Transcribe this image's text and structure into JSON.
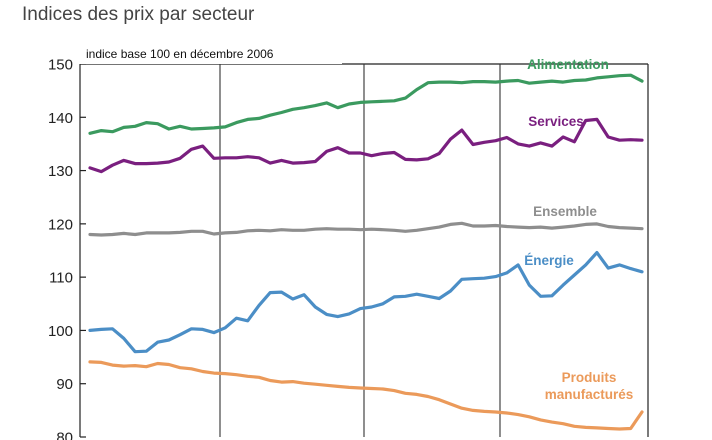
{
  "chart_data": {
    "type": "line",
    "title": "Indices des prix par secteur",
    "subtitle": "indice base 100 en décembre 2006",
    "xlabel": "",
    "ylabel": "",
    "ylim": [
      80,
      150
    ],
    "yticks": [
      80,
      90,
      100,
      110,
      120,
      130,
      140,
      150
    ],
    "grid": "vertical",
    "x": [
      0,
      1,
      2,
      3,
      4,
      5,
      6,
      7,
      8,
      9,
      10,
      11,
      12,
      13,
      14,
      15,
      16,
      17,
      18,
      19,
      20,
      21,
      22,
      23,
      24,
      25,
      26,
      27,
      28,
      29,
      30,
      31,
      32,
      33,
      34,
      35,
      36,
      37,
      38,
      39,
      40,
      41,
      42,
      43,
      44,
      45,
      46,
      47,
      48,
      49
    ],
    "series": [
      {
        "name": "Alimentation",
        "color": "#3b9a5f",
        "values": [
          137.0,
          137.5,
          137.3,
          138.1,
          138.3,
          139.0,
          138.8,
          137.8,
          138.3,
          137.8,
          137.9,
          138.0,
          138.2,
          139.0,
          139.6,
          139.8,
          140.4,
          140.9,
          141.5,
          141.8,
          142.2,
          142.7,
          141.8,
          142.5,
          142.8,
          142.9,
          143.0,
          143.1,
          143.6,
          145.2,
          146.5,
          146.6,
          146.6,
          146.5,
          146.7,
          146.7,
          146.6,
          146.8,
          146.9,
          146.4,
          146.6,
          146.8,
          146.6,
          146.9,
          147.0,
          147.4,
          147.6,
          147.8,
          147.9,
          146.8
        ],
        "label_lines": [
          "Alimentation"
        ]
      },
      {
        "name": "Services",
        "color": "#7a1f7f",
        "values": [
          130.5,
          129.8,
          131.0,
          131.9,
          131.3,
          131.3,
          131.4,
          131.6,
          132.3,
          134.0,
          134.6,
          132.3,
          132.4,
          132.4,
          132.6,
          132.4,
          131.4,
          131.9,
          131.4,
          131.5,
          131.7,
          133.6,
          134.3,
          133.3,
          133.3,
          132.8,
          133.2,
          133.4,
          132.1,
          132.0,
          132.2,
          133.2,
          135.9,
          137.6,
          134.9,
          135.3,
          135.6,
          136.2,
          135.0,
          134.6,
          135.2,
          134.6,
          136.3,
          135.4,
          139.4,
          139.6,
          136.3,
          135.7,
          135.8,
          135.7
        ],
        "label_lines": [
          "Services"
        ]
      },
      {
        "name": "Ensemble",
        "color": "#8e8e8e",
        "values": [
          118.0,
          117.9,
          118.0,
          118.2,
          118.0,
          118.3,
          118.3,
          118.3,
          118.4,
          118.6,
          118.6,
          118.1,
          118.3,
          118.4,
          118.7,
          118.8,
          118.7,
          118.9,
          118.8,
          118.8,
          119.0,
          119.1,
          119.0,
          119.0,
          118.9,
          119.0,
          118.9,
          118.8,
          118.6,
          118.8,
          119.1,
          119.4,
          119.9,
          120.1,
          119.6,
          119.6,
          119.7,
          119.5,
          119.4,
          119.3,
          119.4,
          119.2,
          119.4,
          119.6,
          119.9,
          120.0,
          119.5,
          119.3,
          119.2,
          119.1
        ],
        "label_lines": [
          "Ensemble"
        ]
      },
      {
        "name": "Énergie",
        "color": "#4b8ec6",
        "values": [
          100.0,
          100.2,
          100.3,
          98.5,
          96.0,
          96.1,
          97.8,
          98.2,
          99.2,
          100.3,
          100.2,
          99.6,
          100.5,
          102.3,
          101.8,
          104.7,
          107.1,
          107.2,
          105.9,
          106.7,
          104.4,
          103.0,
          102.6,
          103.1,
          104.1,
          104.4,
          105.0,
          106.3,
          106.4,
          106.8,
          106.4,
          106.0,
          107.4,
          109.6,
          109.7,
          109.8,
          110.1,
          110.8,
          112.3,
          108.5,
          106.4,
          106.5,
          108.5,
          110.4,
          112.3,
          114.6,
          111.7,
          112.3,
          111.6,
          111.0
        ],
        "label_lines": [
          "Énergie"
        ]
      },
      {
        "name": "Produits manufacturés",
        "color": "#eb9a5a",
        "values": [
          94.1,
          94.0,
          93.5,
          93.3,
          93.4,
          93.2,
          93.8,
          93.6,
          93.0,
          92.8,
          92.3,
          92.0,
          91.9,
          91.7,
          91.4,
          91.2,
          90.6,
          90.3,
          90.4,
          90.1,
          89.9,
          89.7,
          89.5,
          89.3,
          89.2,
          89.1,
          89.0,
          88.7,
          88.2,
          88.0,
          87.6,
          87.0,
          86.2,
          85.4,
          85.0,
          84.8,
          84.7,
          84.5,
          84.2,
          83.8,
          83.2,
          82.8,
          82.5,
          82.0,
          81.8,
          81.7,
          81.6,
          81.5,
          81.6,
          84.7
        ],
        "label_lines": [
          "Produits",
          "manufacturés"
        ]
      }
    ]
  }
}
